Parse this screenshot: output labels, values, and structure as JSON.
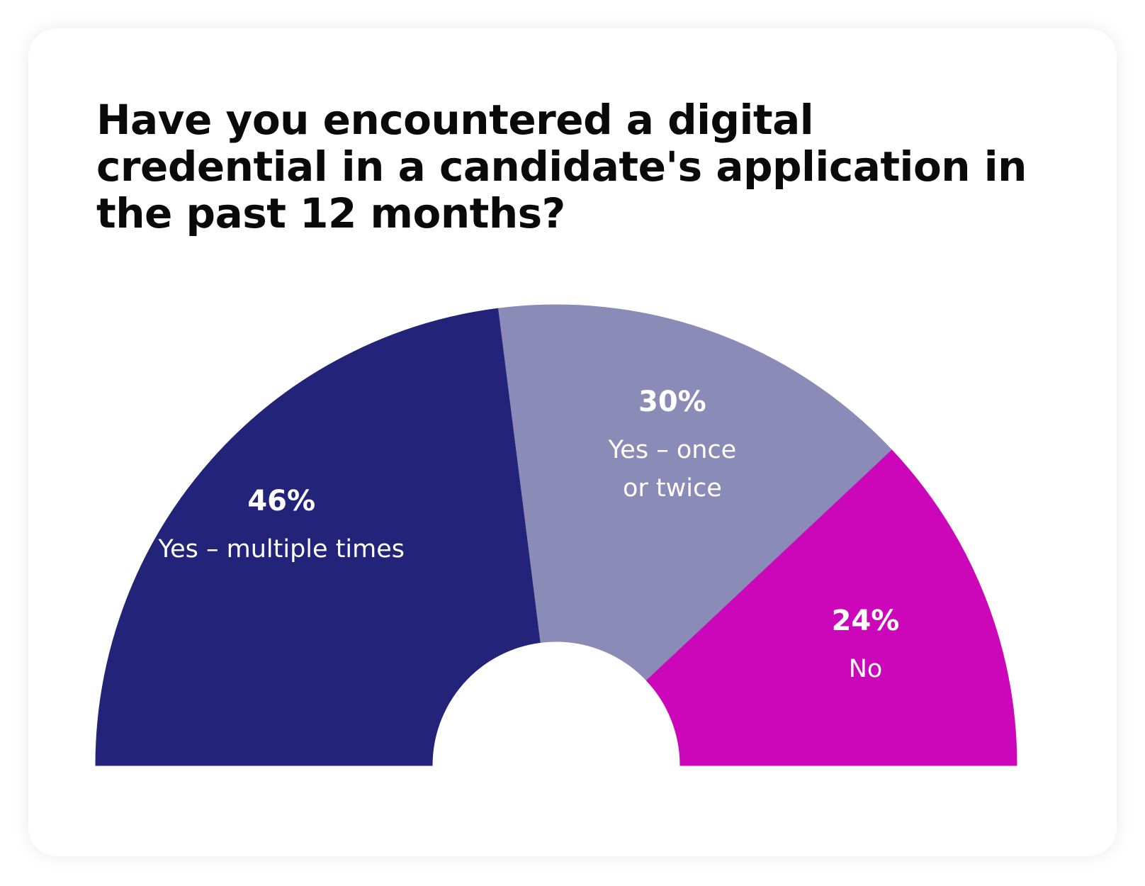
{
  "chart_data": {
    "type": "pie",
    "variant": "half-donut",
    "title": "Have you encountered a digital credential in a candidate's application in the past 12 months?",
    "slices": [
      {
        "value": 46,
        "label": "46%",
        "name_lines": [
          "Yes – multiple times"
        ],
        "color": "#23237a"
      },
      {
        "value": 30,
        "label": "30%",
        "name_lines": [
          "Yes – once",
          "or twice"
        ],
        "color": "#8a8bb7"
      },
      {
        "value": 24,
        "label": "24%",
        "name_lines": [
          "No"
        ],
        "color": "#cc07b9"
      }
    ]
  }
}
